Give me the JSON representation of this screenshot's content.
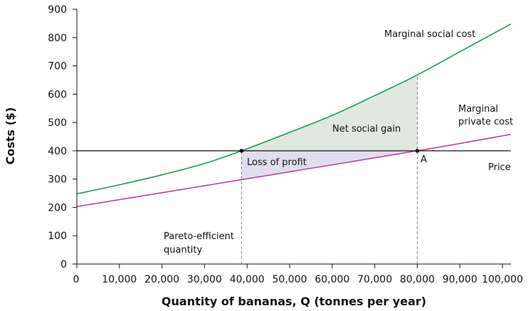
{
  "chart_data": {
    "type": "line",
    "xlabel": "Quantity of bananas, Q (tonnes per year)",
    "ylabel": "Costs ($)",
    "xlim": [
      0,
      102000
    ],
    "ylim": [
      0,
      900
    ],
    "x_ticks": [
      0,
      10000,
      20000,
      30000,
      40000,
      50000,
      60000,
      70000,
      80000,
      90000,
      100000
    ],
    "x_tick_labels": [
      "0",
      "10,000",
      "20,000",
      "30,000",
      "40,000",
      "50,000",
      "60,000",
      "70,000",
      "80,000",
      "90,000",
      "100,000"
    ],
    "y_ticks": [
      0,
      100,
      200,
      300,
      400,
      500,
      600,
      700,
      800,
      900
    ],
    "y_tick_labels": [
      "0",
      "100",
      "200",
      "300",
      "400",
      "500",
      "600",
      "700",
      "800",
      "900"
    ],
    "grid": false,
    "series": [
      {
        "name": "Marginal social cost",
        "color": "#1a9a55",
        "x": [
          0,
          10000,
          20000,
          30000,
          38700,
          50000,
          60000,
          70000,
          80000,
          90000,
          102000
        ],
        "y": [
          248,
          280,
          315,
          355,
          400,
          465,
          525,
          595,
          668,
          750,
          848
        ]
      },
      {
        "name": "Marginal private cost",
        "color": "#b5459b",
        "x": [
          0,
          38700,
          80000,
          102000
        ],
        "y": [
          203,
          298,
          400,
          458
        ]
      },
      {
        "name": "Price",
        "color": "#111111",
        "x": [
          0,
          102000
        ],
        "y": [
          400,
          400
        ]
      }
    ],
    "points": [
      {
        "label": "",
        "x": 38700,
        "y": 400
      },
      {
        "label": "A",
        "x": 80000,
        "y": 400
      }
    ],
    "vlines": [
      38700,
      80000
    ],
    "regions": {
      "net_social_gain": {
        "label": "Net social gain",
        "color": "#dfe8dc"
      },
      "loss_of_profit": {
        "label": "Loss of profit",
        "color": "#e1dcef"
      }
    },
    "annotations": {
      "msc_label": "Marginal social cost",
      "mpc_label_1": "Marginal",
      "mpc_label_2": "private cost",
      "price_label": "Price",
      "pareto_label_1": "Pareto-efficient",
      "pareto_label_2": "quantity"
    }
  }
}
